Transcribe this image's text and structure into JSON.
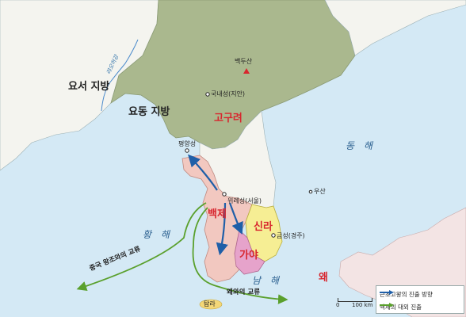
{
  "regions": {
    "yoseo": "요서 지방",
    "yodong": "요동 지방"
  },
  "seas": {
    "yellow": "황 해",
    "east": "동 해",
    "south": "남 해"
  },
  "kingdoms": {
    "goguryeo": "고구려",
    "baekje": "백제",
    "silla": "신라",
    "gaya": "가야",
    "wa": "왜"
  },
  "places": {
    "baekdusan": "백두산",
    "gungnae": "국내성(지안)",
    "pyeongyang": "평양성",
    "wiryeseong": "위례성(서울)",
    "geumseong": "금성(경주)",
    "usan": "우산",
    "tamna": "탐라"
  },
  "rivers": {
    "liao": "랴오허강"
  },
  "routes": {
    "china": "중국 왕조와의 교류",
    "wa": "왜와의 교류"
  },
  "legend": {
    "item1": "근초고왕의 진출 방향",
    "item2": "백제의 대외 진출",
    "item1_color": "#1f5fa8",
    "item2_color": "#5aa02c"
  },
  "scale": {
    "zero": "0",
    "distance": "100 km"
  },
  "colors": {
    "sea": "#d4e9f5",
    "land": "#f4f4ef",
    "goguryeo": "#aab88e",
    "baekje": "#f2c8c0",
    "silla": "#f6ee94",
    "gaya": "#e6a3cb",
    "japan": "#f3e4e4"
  }
}
